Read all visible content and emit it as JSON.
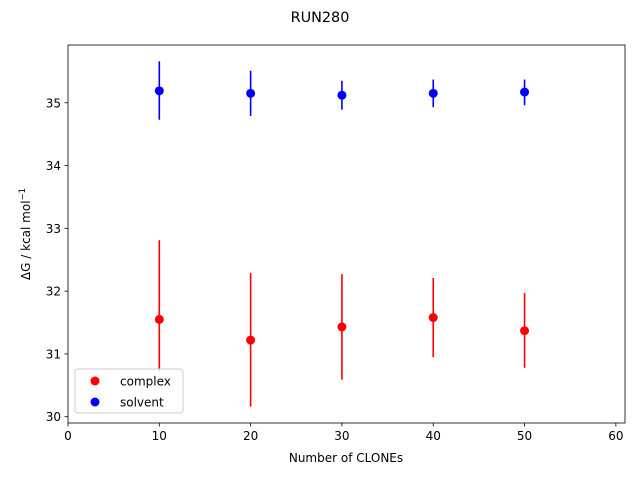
{
  "chart_data": {
    "type": "scatter",
    "title": "RUN280",
    "xlabel": "Number of CLONEs",
    "ylabel_main": "ΔG / kcal mol",
    "ylabel_sup": "−1",
    "xlim": [
      0,
      61
    ],
    "ylim": [
      29.9,
      35.92
    ],
    "xticks": [
      0,
      10,
      20,
      30,
      40,
      50,
      60
    ],
    "yticks": [
      30,
      31,
      32,
      33,
      34,
      35
    ],
    "legend_position": "lower-left",
    "series": [
      {
        "name": "complex",
        "color": "#ff0000",
        "points": [
          {
            "x": 10,
            "y": 31.55,
            "err_low": 30.72,
            "err_high": 32.81
          },
          {
            "x": 20,
            "y": 31.22,
            "err_low": 30.16,
            "err_high": 32.29
          },
          {
            "x": 30,
            "y": 31.43,
            "err_low": 30.59,
            "err_high": 32.27
          },
          {
            "x": 40,
            "y": 31.58,
            "err_low": 30.95,
            "err_high": 32.21
          },
          {
            "x": 50,
            "y": 31.37,
            "err_low": 30.78,
            "err_high": 31.97
          }
        ]
      },
      {
        "name": "solvent",
        "color": "#0000ff",
        "points": [
          {
            "x": 10,
            "y": 35.19,
            "err_low": 34.73,
            "err_high": 35.66
          },
          {
            "x": 20,
            "y": 35.15,
            "err_low": 34.79,
            "err_high": 35.51
          },
          {
            "x": 30,
            "y": 35.12,
            "err_low": 34.89,
            "err_high": 35.35
          },
          {
            "x": 40,
            "y": 35.15,
            "err_low": 34.93,
            "err_high": 35.37
          },
          {
            "x": 50,
            "y": 35.17,
            "err_low": 34.96,
            "err_high": 35.37
          }
        ]
      }
    ]
  }
}
